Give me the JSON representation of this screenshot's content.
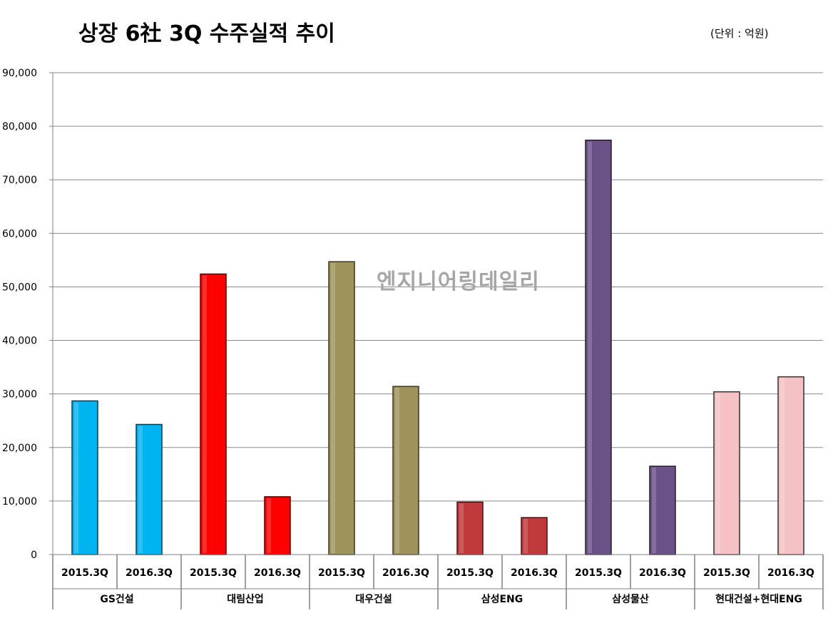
{
  "chart_data": {
    "type": "bar",
    "title": "상장 6社 3Q 수주실적 추이",
    "unit": "(단위 : 억원)",
    "watermark": "엔지니어링데일리",
    "xlabel": "",
    "ylabel": "",
    "ylim": [
      0,
      90000
    ],
    "y_ticks": [
      "0",
      "10,000",
      "20,000",
      "30,000",
      "40,000",
      "50,000",
      "60,000",
      "70,000",
      "80,000",
      "90,000"
    ],
    "grid": true,
    "legend": "none",
    "groups": [
      {
        "name": "GS건설",
        "color": "#00b4f0",
        "stroke": "#0a3a5a",
        "bars": [
          {
            "period": "2015.3Q",
            "value": 28700
          },
          {
            "period": "2016.3Q",
            "value": 24300
          }
        ]
      },
      {
        "name": "대림산업",
        "color": "#ff0000",
        "stroke": "#5a0000",
        "bars": [
          {
            "period": "2015.3Q",
            "value": 52400
          },
          {
            "period": "2016.3Q",
            "value": 10800
          }
        ]
      },
      {
        "name": "대우건설",
        "color": "#9e935a",
        "stroke": "#3a3520",
        "bars": [
          {
            "period": "2015.3Q",
            "value": 54700
          },
          {
            "period": "2016.3Q",
            "value": 31400
          }
        ]
      },
      {
        "name": "삼성ENG",
        "color": "#c0393b",
        "stroke": "#4a1010",
        "bars": [
          {
            "period": "2015.3Q",
            "value": 9800
          },
          {
            "period": "2016.3Q",
            "value": 6900
          }
        ]
      },
      {
        "name": "삼성물산",
        "color": "#6a5187",
        "stroke": "#241a30",
        "bars": [
          {
            "period": "2015.3Q",
            "value": 77400
          },
          {
            "period": "2016.3Q",
            "value": 16500
          }
        ]
      },
      {
        "name": "현대건설+현대ENG",
        "color": "#f4c2c4",
        "stroke": "#3a2a2a",
        "bars": [
          {
            "period": "2015.3Q",
            "value": 30400
          },
          {
            "period": "2016.3Q",
            "value": 33200
          }
        ]
      }
    ]
  }
}
